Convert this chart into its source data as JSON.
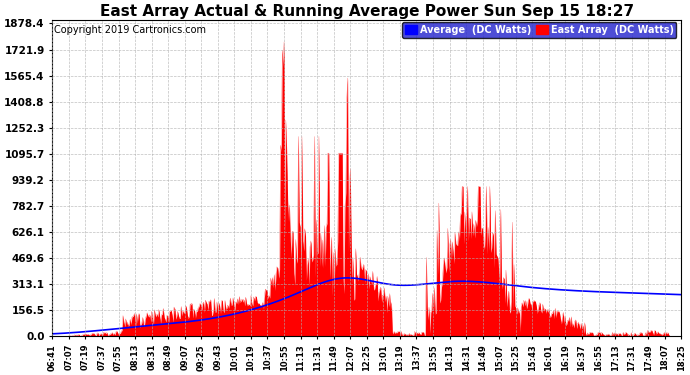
{
  "title": "East Array Actual & Running Average Power Sun Sep 15 18:27",
  "copyright": "Copyright 2019 Cartronics.com",
  "legend_avg": "Average  (DC Watts)",
  "legend_east": "East Array  (DC Watts)",
  "ymin": 0.0,
  "ymax": 1878.4,
  "yticks": [
    0.0,
    156.5,
    313.1,
    469.6,
    626.1,
    782.7,
    939.2,
    1095.7,
    1252.3,
    1408.8,
    1565.4,
    1721.9,
    1878.4
  ],
  "xtick_labels": [
    "06:41",
    "07:07",
    "07:19",
    "07:37",
    "07:55",
    "08:13",
    "08:31",
    "08:49",
    "09:07",
    "09:25",
    "09:43",
    "10:01",
    "10:19",
    "10:37",
    "10:55",
    "11:13",
    "11:31",
    "11:49",
    "12:07",
    "12:25",
    "13:01",
    "13:19",
    "13:37",
    "13:55",
    "14:13",
    "14:31",
    "14:49",
    "15:07",
    "15:25",
    "15:43",
    "16:01",
    "16:19",
    "16:37",
    "16:55",
    "17:13",
    "17:31",
    "17:49",
    "18:07",
    "18:25"
  ],
  "background_color": "#ffffff",
  "fill_color": "#ff0000",
  "line_color": "#0000ff",
  "grid_color": "#b0b0b0",
  "title_fontsize": 11,
  "label_fontsize": 7.5,
  "copyright_fontsize": 7
}
